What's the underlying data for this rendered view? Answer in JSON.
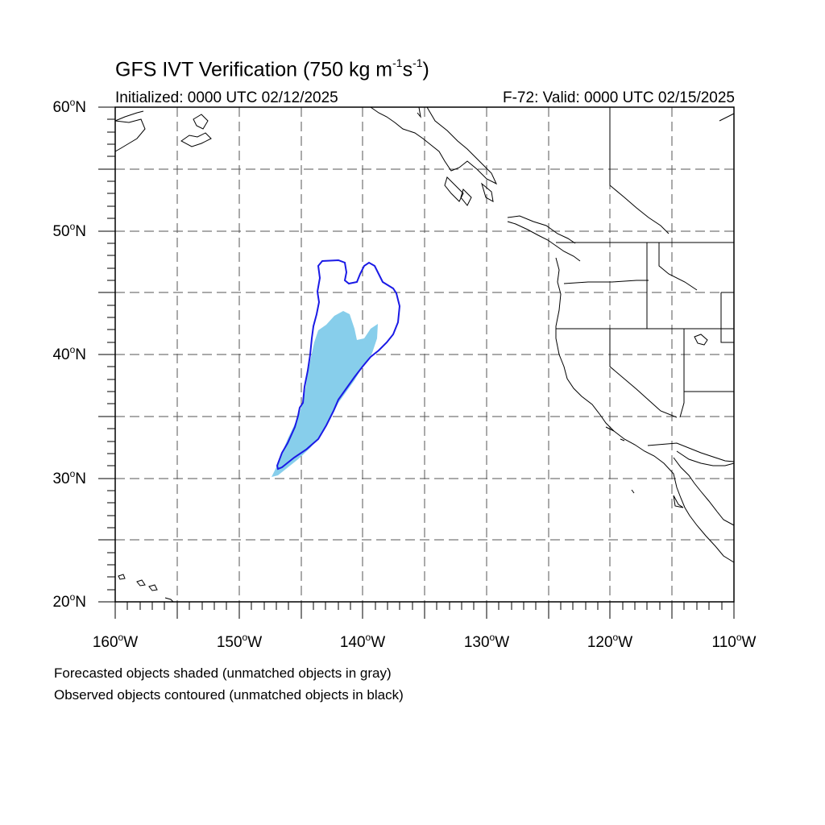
{
  "title": {
    "main": "GFS IVT Verification (750 kg m",
    "exp1": "-1",
    "mid": "s",
    "exp2": "-1",
    "close": ")"
  },
  "subtitle": {
    "initialized": "Initialized: 0000 UTC 02/12/2025",
    "valid": "F-72: Valid: 0000 UTC 02/15/2025"
  },
  "axes": {
    "lat_labels": [
      {
        "value": "60",
        "suffix": "N"
      },
      {
        "value": "50",
        "suffix": "N"
      },
      {
        "value": "40",
        "suffix": "N"
      },
      {
        "value": "30",
        "suffix": "N"
      },
      {
        "value": "20",
        "suffix": "N"
      }
    ],
    "lon_labels": [
      {
        "value": "160",
        "suffix": "W"
      },
      {
        "value": "150",
        "suffix": "W"
      },
      {
        "value": "140",
        "suffix": "W"
      },
      {
        "value": "130",
        "suffix": "W"
      },
      {
        "value": "120",
        "suffix": "W"
      },
      {
        "value": "110",
        "suffix": "W"
      }
    ],
    "lat_range": [
      20,
      60
    ],
    "lon_range": [
      -160,
      -110
    ]
  },
  "legend": {
    "line1": "Forecasted objects shaded (unmatched objects in gray)",
    "line2": "Observed objects contoured (unmatched objects in black)"
  },
  "colors": {
    "forecast_fill": "#87ceeb",
    "observed_contour": "#1a1ae6",
    "coastline": "#000000",
    "gridline": "#555555"
  }
}
